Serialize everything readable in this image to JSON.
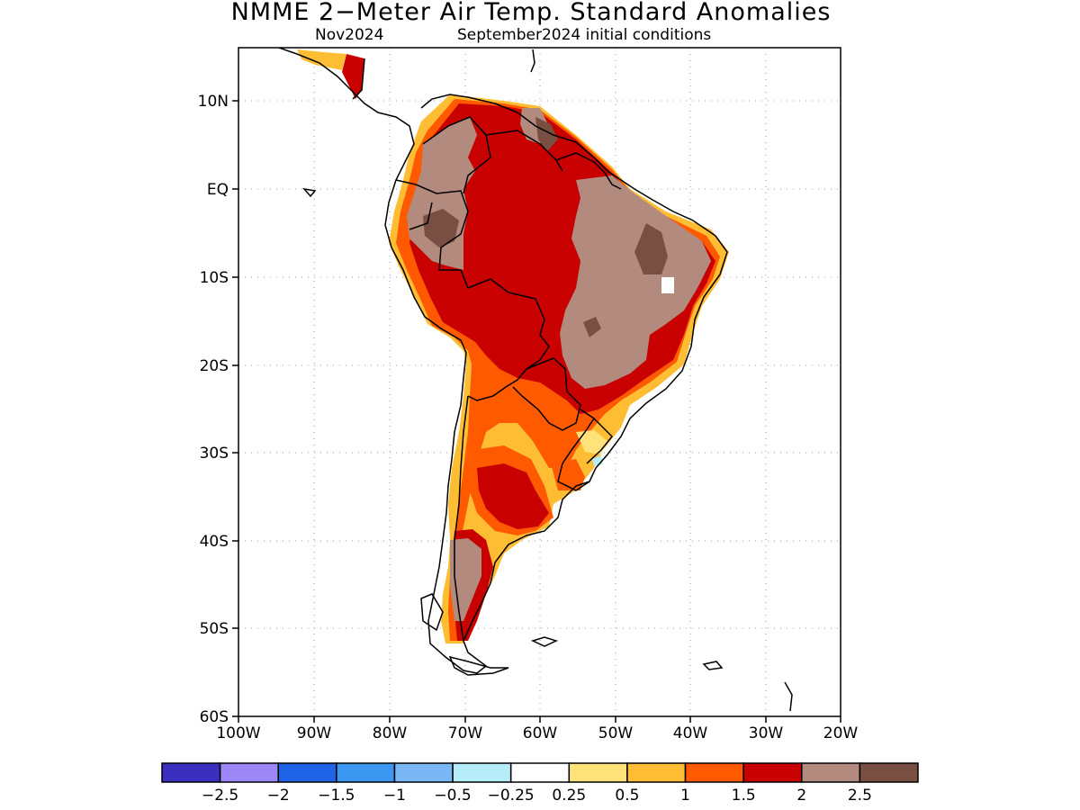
{
  "map": {
    "title": "NMME 2−Meter Air Temp. Standard Anomalies",
    "valid_month": "Nov2024",
    "initial_conditions": "September2024 initial conditions",
    "lat_labels": [
      "10N",
      "EQ",
      "10S",
      "20S",
      "30S",
      "40S",
      "50S",
      "60S"
    ],
    "lon_labels": [
      "100W",
      "90W",
      "80W",
      "70W",
      "60W",
      "50W",
      "40W",
      "30W",
      "20W"
    ]
  },
  "legend": {
    "colors": [
      "#3b2fbf",
      "#9b87f5",
      "#1f64e6",
      "#3c97f0",
      "#7ab8f5",
      "#b5ecf7",
      "#ffffff",
      "#ffe27a",
      "#ffbd33",
      "#ff5a00",
      "#c90000",
      "#b38a7e",
      "#7a4f43"
    ],
    "labels": [
      "−2.5",
      "−2",
      "−1.5",
      "−1",
      "−0.5",
      "−0.25",
      "0.25",
      "0.5",
      "1",
      "1.5",
      "2",
      "2.5"
    ]
  }
}
